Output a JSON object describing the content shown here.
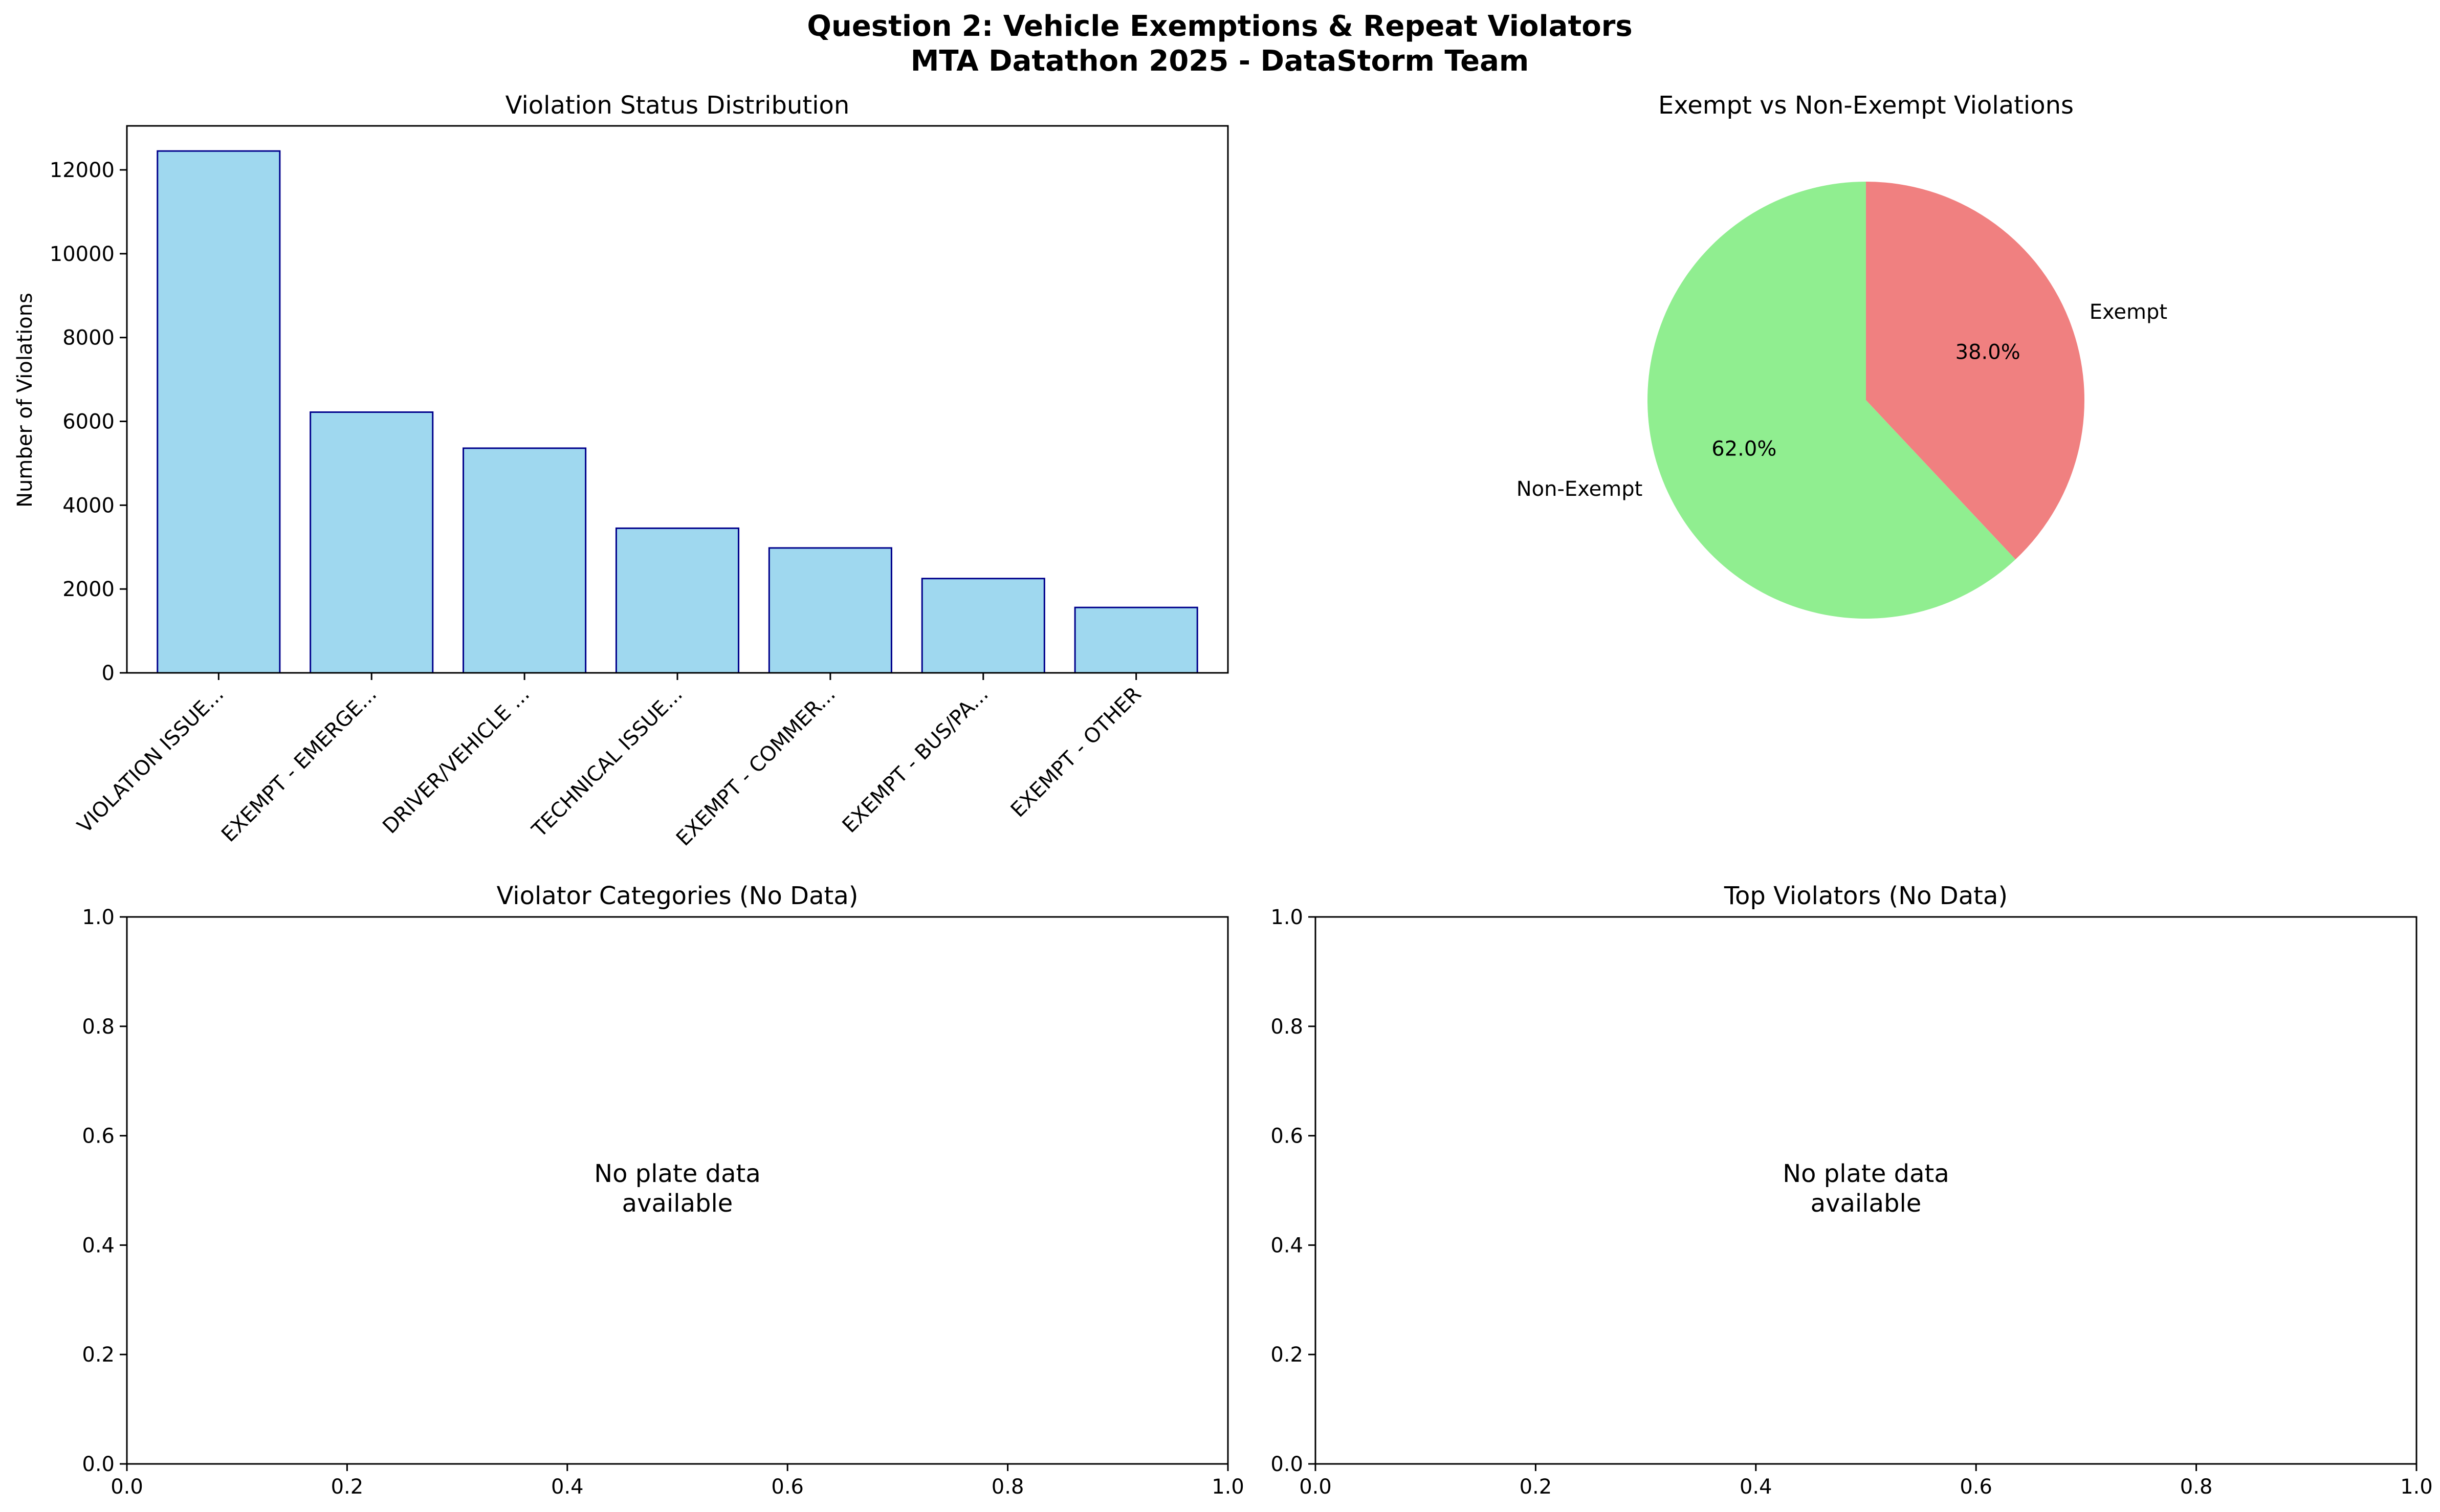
{
  "figure": {
    "title_line1": "Question 2: Vehicle Exemptions & Repeat Violators",
    "title_line2": "MTA Datathon 2025 - DataStorm Team"
  },
  "chart_data": [
    {
      "type": "bar",
      "title": "Violation Status Distribution",
      "xlabel": "",
      "ylabel": "Number of Violations",
      "categories": [
        "VIOLATION ISSUE...",
        "EXEMPT - EMERGE...",
        "DRIVER/VEHICLE ...",
        "TECHNICAL ISSUE...",
        "EXEMPT - COMMER...",
        "EXEMPT - BUS/PA...",
        "EXEMPT - OTHER"
      ],
      "values": [
        12450,
        6220,
        5360,
        3450,
        2980,
        2250,
        1560
      ],
      "ylim": [
        0,
        13050
      ],
      "yticks": [
        0,
        2000,
        4000,
        6000,
        8000,
        10000,
        12000
      ],
      "colors": {
        "fill": "#87ceeb",
        "edge": "#00008b"
      },
      "grid": false
    },
    {
      "type": "pie",
      "title": "Exempt vs Non-Exempt Violations",
      "labels": [
        "Exempt",
        "Non-Exempt"
      ],
      "values": [
        38.0,
        62.0
      ],
      "pct_labels": [
        "38.0%",
        "62.0%"
      ],
      "colors": [
        "#f08080",
        "#90ee90"
      ],
      "start_angle": 90
    },
    {
      "type": "scatter",
      "title": "Violator Categories (No Data)",
      "message_line1": "No plate data",
      "message_line2": "available",
      "xlim": [
        0,
        1
      ],
      "ylim": [
        0,
        1
      ],
      "xticks": [
        "0.0",
        "0.2",
        "0.4",
        "0.6",
        "0.8",
        "1.0"
      ],
      "yticks": [
        "0.0",
        "0.2",
        "0.4",
        "0.6",
        "0.8",
        "1.0"
      ]
    },
    {
      "type": "scatter",
      "title": "Top Violators (No Data)",
      "message_line1": "No plate data",
      "message_line2": "available",
      "xlim": [
        0,
        1
      ],
      "ylim": [
        0,
        1
      ],
      "xticks": [
        "0.0",
        "0.2",
        "0.4",
        "0.6",
        "0.8",
        "1.0"
      ],
      "yticks": [
        "0.0",
        "0.2",
        "0.4",
        "0.6",
        "0.8",
        "1.0"
      ]
    }
  ]
}
